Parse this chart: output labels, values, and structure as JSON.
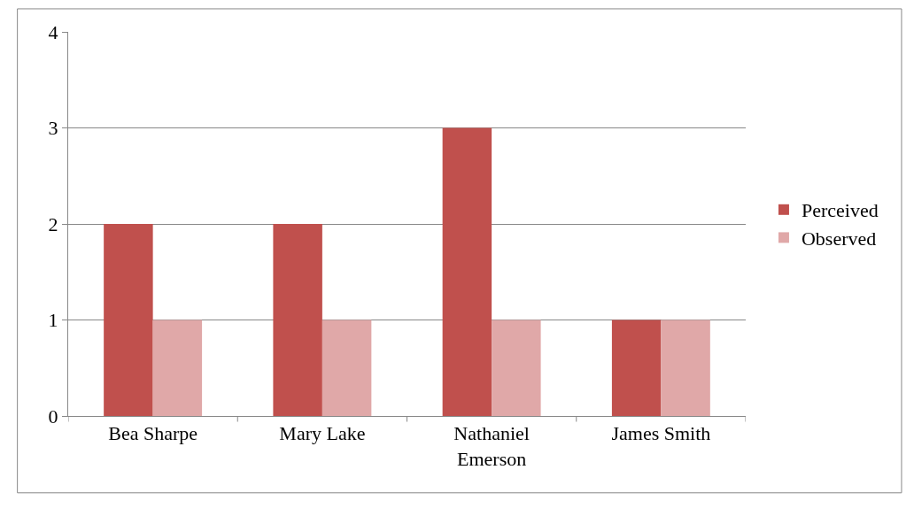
{
  "chart_data": {
    "type": "bar",
    "categories": [
      "Bea Sharpe",
      "Mary Lake",
      "Nathaniel Emerson",
      "James Smith"
    ],
    "series": [
      {
        "name": "Perceived",
        "color": "#c0504d",
        "values": [
          2,
          2,
          3,
          1
        ]
      },
      {
        "name": "Observed",
        "color": "#e0a8a8",
        "values": [
          1,
          1,
          1,
          1
        ]
      }
    ],
    "ylim": [
      0,
      4
    ],
    "yticks": [
      0,
      1,
      2,
      3,
      4
    ],
    "grid": "y",
    "legend": "right"
  }
}
